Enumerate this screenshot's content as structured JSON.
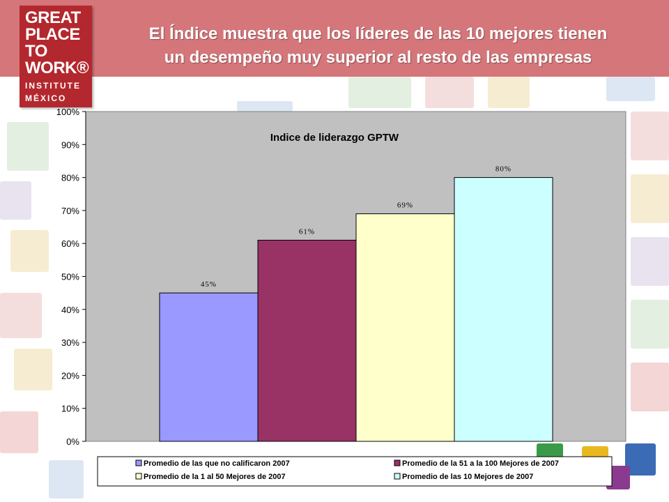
{
  "header": {
    "title_line1": "El Índice muestra que los líderes de las 10 mejores tienen",
    "title_line2": "un desempeño muy superior al resto  de las empresas"
  },
  "logo": {
    "line1": "GREAT",
    "line2": "PLACE",
    "line3": "TO",
    "line4": "WORK®",
    "line5": "INSTITUTE",
    "line6": "MÉXICO"
  },
  "colors": {
    "header_bg": "#d4767a",
    "plot_bg": "#c0c0c0",
    "logo_red": "#b3282e"
  },
  "chart_data": {
    "type": "bar",
    "title": "Indice de liderazgo GPTW",
    "ylim": [
      0,
      100
    ],
    "y_ticks": [
      "0%",
      "10%",
      "20%",
      "30%",
      "40%",
      "50%",
      "60%",
      "70%",
      "80%",
      "90%",
      "100%"
    ],
    "series": [
      {
        "name": "Promedio de las que no calificaron 2007",
        "value": 45,
        "label": "45%",
        "color": "#9999ff"
      },
      {
        "name": "Promedio de la 51 a la 100 Mejores de 2007",
        "value": 61,
        "label": "61%",
        "color": "#993366"
      },
      {
        "name": "Promedio de la 1 al 50 Mejores de 2007",
        "value": 69,
        "label": "69%",
        "color": "#ffffcc"
      },
      {
        "name": "Promedio de las 10 Mejores de 2007",
        "value": 80,
        "label": "80%",
        "color": "#ccffff"
      }
    ],
    "legend_position": "bottom"
  }
}
